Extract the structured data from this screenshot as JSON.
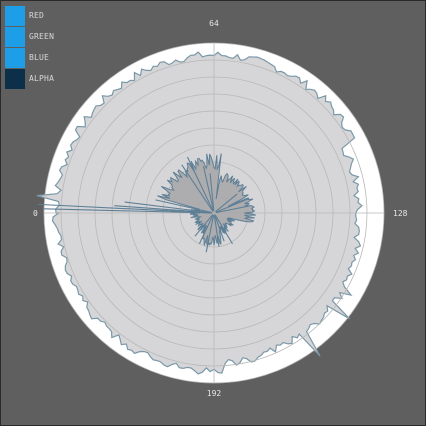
{
  "legend": {
    "items": [
      {
        "label": "RED",
        "color": "#1e9ee6"
      },
      {
        "label": "GREEN",
        "color": "#1e9ee6"
      },
      {
        "label": "BLUE",
        "color": "#1e9ee6"
      },
      {
        "label": "ALPHA",
        "color": "#0c2f4a"
      }
    ]
  },
  "colors": {
    "background": "#5f5f5f",
    "disc": "#ffffff",
    "histogram_fill": "#d6d6d8",
    "histogram_stroke": "#7a98a8",
    "inner_fill": "#a9a9ab",
    "inner_stroke": "#5e7f96",
    "grid": "#b8b8b8"
  },
  "chart_data": {
    "type": "polar-histogram",
    "angle_labels": [
      {
        "text": "0",
        "value": 0
      },
      {
        "text": "64",
        "value": 64
      },
      {
        "text": "128",
        "value": 128
      },
      {
        "text": "192",
        "value": 192
      }
    ],
    "bins": 256,
    "rings": 10
  }
}
